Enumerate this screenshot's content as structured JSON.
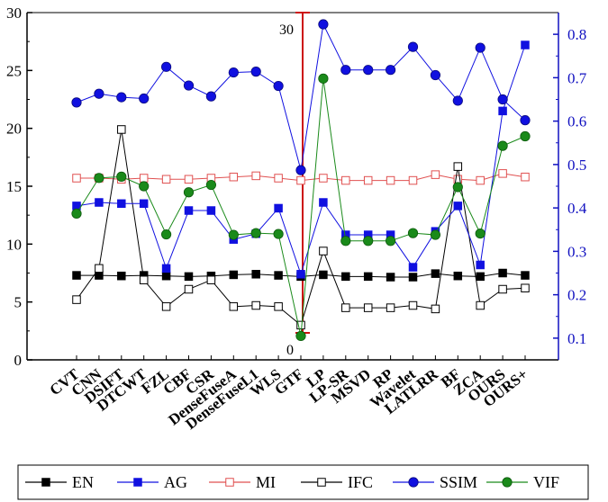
{
  "chart_data": {
    "type": "line",
    "categories": [
      "CVT",
      "CNN",
      "DSIFT",
      "DTCWT",
      "FZL",
      "CBF",
      "CSR",
      "DenseFuseA",
      "DenseFuseL1",
      "WLS",
      "GTF",
      "LP",
      "LP-SR",
      "MSVD",
      "RP",
      "Wavelet",
      "LATLRR",
      "BF",
      "ZCA",
      "OURS",
      "OURS+"
    ],
    "left_axis": {
      "ylim": [
        0,
        30
      ],
      "ticks": [
        "0",
        "5",
        "10",
        "15",
        "20",
        "25",
        "30"
      ]
    },
    "right_axis": {
      "ylim": [
        0.05,
        0.85
      ],
      "ticks": [
        "0.1",
        "0.2",
        "0.3",
        "0.4",
        "0.5",
        "0.6",
        "0.7",
        "0.8"
      ]
    },
    "middle_axis": {
      "ticks": [
        "0",
        "30"
      ]
    },
    "legend_position": "bottom",
    "series": [
      {
        "name": "EN",
        "axis": "left",
        "color": "#000000",
        "marker": "square-filled",
        "values": [
          7.3,
          7.3,
          7.25,
          7.3,
          7.25,
          7.2,
          7.25,
          7.35,
          7.4,
          7.3,
          7.2,
          7.35,
          7.2,
          7.2,
          7.15,
          7.15,
          7.45,
          7.25,
          7.2,
          7.5,
          7.3
        ]
      },
      {
        "name": "AG",
        "axis": "left",
        "color": "#1010e0",
        "marker": "square-filled",
        "values": [
          13.3,
          13.6,
          13.5,
          13.5,
          7.9,
          12.9,
          12.9,
          10.4,
          10.9,
          13.1,
          7.4,
          13.6,
          10.8,
          10.8,
          10.8,
          8.0,
          11.1,
          13.3,
          8.2,
          21.5,
          27.2
        ]
      },
      {
        "name": "MI",
        "axis": "left",
        "color": "#e05050",
        "marker": "square-open",
        "values": [
          15.7,
          15.7,
          15.6,
          15.7,
          15.6,
          15.6,
          15.7,
          15.8,
          15.9,
          15.7,
          15.5,
          15.7,
          15.5,
          15.5,
          15.5,
          15.5,
          16.0,
          15.6,
          15.5,
          16.1,
          15.8
        ]
      },
      {
        "name": "IFC",
        "axis": "left",
        "color": "#000000",
        "marker": "square-open",
        "values": [
          5.2,
          7.9,
          19.9,
          6.9,
          4.6,
          6.1,
          6.9,
          4.6,
          4.7,
          4.6,
          3.0,
          9.4,
          4.5,
          4.5,
          4.5,
          4.7,
          4.4,
          16.7,
          4.7,
          6.1,
          6.2
        ]
      },
      {
        "name": "SSIM",
        "axis": "right",
        "color": "#1010e0",
        "marker": "circle-filled",
        "values": [
          0.643,
          0.663,
          0.655,
          0.652,
          0.725,
          0.682,
          0.657,
          0.712,
          0.714,
          0.681,
          0.487,
          0.823,
          0.718,
          0.718,
          0.718,
          0.771,
          0.706,
          0.647,
          0.769,
          0.65,
          0.602
        ]
      },
      {
        "name": "VIF",
        "axis": "right",
        "color": "#1a8a1a",
        "marker": "circle-filled",
        "values": [
          0.387,
          0.469,
          0.472,
          0.45,
          0.339,
          0.436,
          0.453,
          0.338,
          0.342,
          0.34,
          0.105,
          0.698,
          0.324,
          0.324,
          0.324,
          0.342,
          0.338,
          0.448,
          0.341,
          0.543,
          0.565
        ]
      }
    ]
  }
}
